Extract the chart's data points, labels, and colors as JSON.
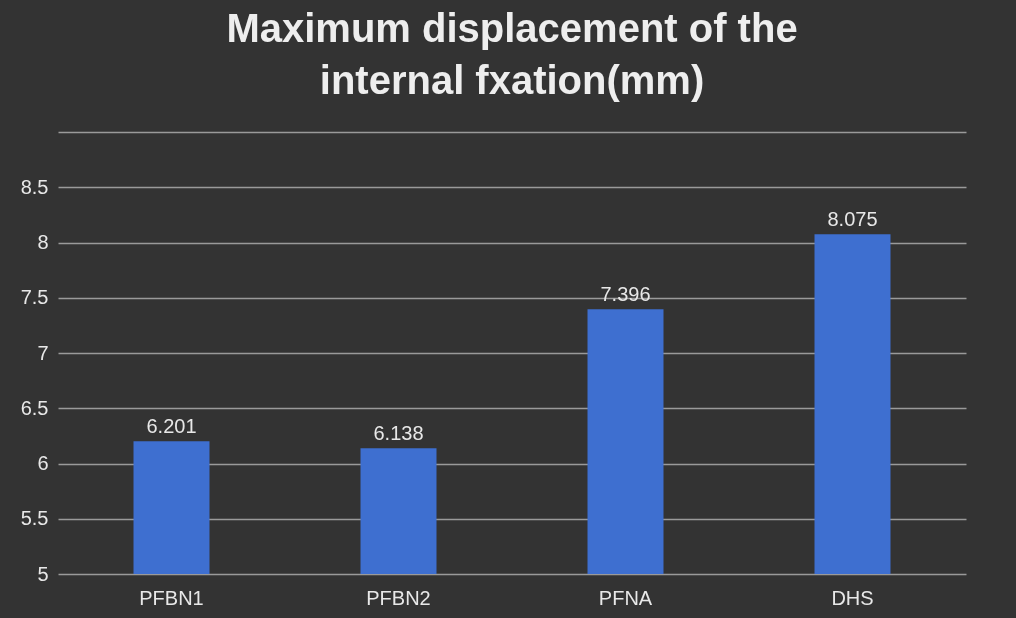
{
  "chart_data": {
    "type": "bar",
    "title": "Maximum displacement of the internal fxation(mm)",
    "categories": [
      "PFBN1",
      "PFBN2",
      "PFNA",
      "DHS"
    ],
    "values": [
      6.201,
      6.138,
      7.396,
      8.075
    ],
    "color": "#3e6fd0",
    "ylim": [
      5,
      9
    ],
    "yticks": [
      5,
      5.5,
      6,
      6.5,
      7,
      7.5,
      8,
      8.5,
      {
        "value": 9,
        "label": null
      }
    ],
    "grid": "y",
    "data_labels": true
  }
}
